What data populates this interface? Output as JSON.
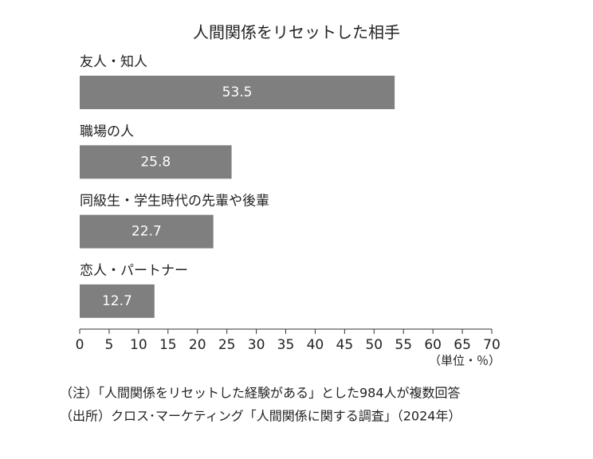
{
  "chart_data": {
    "type": "bar",
    "orientation": "horizontal",
    "title": "人間関係をリセットした相手",
    "categories": [
      "友人・知人",
      "職場の人",
      "同級生・学生時代の先輩や後輩",
      "恋人・パートナー"
    ],
    "values": [
      53.5,
      25.8,
      22.7,
      12.7
    ],
    "color": "#7f7f7f",
    "xlim": [
      0,
      70
    ],
    "xticks": [
      0,
      5,
      10,
      15,
      20,
      25,
      30,
      35,
      40,
      45,
      50,
      55,
      60,
      65,
      70
    ],
    "xlabel": "（単位・％）",
    "grid": false,
    "notes": [
      "（注）「人間関係をリセットした経験がある」とした984人が複数回答",
      "（出所）クロス･マーケティング「人間関係に関する調査」（2024年）"
    ]
  }
}
